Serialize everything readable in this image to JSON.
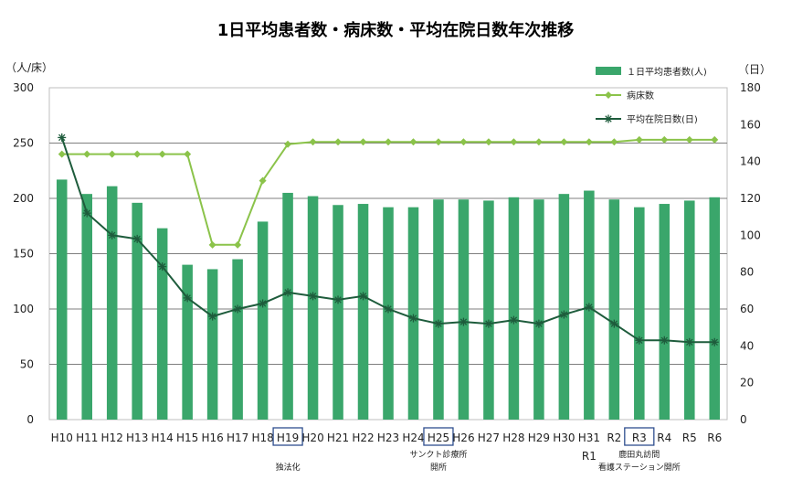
{
  "chart_data": {
    "type": "bar",
    "title": "1日平均患者数・病床数・平均在院日数年次推移",
    "left_unit": "（人/床）",
    "right_unit": "（日）",
    "ylim": [
      0,
      300
    ],
    "y_ticks": [
      0,
      50,
      100,
      150,
      200,
      250,
      300
    ],
    "y2lim": [
      0,
      180
    ],
    "y2_ticks": [
      0,
      20,
      40,
      60,
      80,
      100,
      120,
      140,
      160,
      180
    ],
    "grid": "horizontal",
    "legend_position": "top-right",
    "categories": [
      "H10",
      "H11",
      "H12",
      "H13",
      "H14",
      "H15",
      "H16",
      "H17",
      "H18",
      "H19",
      "H20",
      "H21",
      "H22",
      "H23",
      "H24",
      "H25",
      "H26",
      "H27",
      "H28",
      "H29",
      "H30",
      "H31",
      "R2",
      "R3",
      "R4",
      "R5",
      "R6"
    ],
    "category_sublabels": {
      "H31": "R1"
    },
    "highlighted_categories": [
      "H19",
      "H25",
      "R3"
    ],
    "annotations": [
      {
        "category": "H19",
        "lines": [
          "独法化"
        ]
      },
      {
        "category": "H25",
        "lines": [
          "サンクト診療所",
          "開所"
        ]
      },
      {
        "category": "R3",
        "lines": [
          "鹿田丸訪問",
          "看護ステーション開所"
        ]
      }
    ],
    "series": [
      {
        "name": "１日平均患者数(人)",
        "type": "bar",
        "axis": "left",
        "color": "#3aa66b",
        "values": [
          217,
          204,
          211,
          196,
          173,
          140,
          136,
          145,
          179,
          205,
          202,
          194,
          195,
          192,
          192,
          199,
          199,
          198,
          201,
          199,
          204,
          207,
          199,
          192,
          195,
          198,
          201
        ]
      },
      {
        "name": "病床数",
        "type": "line",
        "axis": "left",
        "color": "#8bc34a",
        "marker": "diamond",
        "values": [
          240,
          240,
          240,
          240,
          240,
          240,
          158,
          158,
          216,
          249,
          251,
          251,
          251,
          251,
          251,
          251,
          251,
          251,
          251,
          251,
          251,
          251,
          251,
          253,
          253,
          253,
          253
        ]
      },
      {
        "name": "平均在院日数(日)",
        "type": "line",
        "axis": "right",
        "color": "#1e5c3c",
        "marker": "asterisk",
        "values": [
          153,
          112,
          100,
          98,
          83,
          66,
          56,
          60,
          63,
          69,
          67,
          65,
          67,
          60,
          55,
          52,
          53,
          52,
          54,
          52,
          57,
          61,
          52,
          43,
          43,
          42,
          42
        ]
      }
    ]
  }
}
